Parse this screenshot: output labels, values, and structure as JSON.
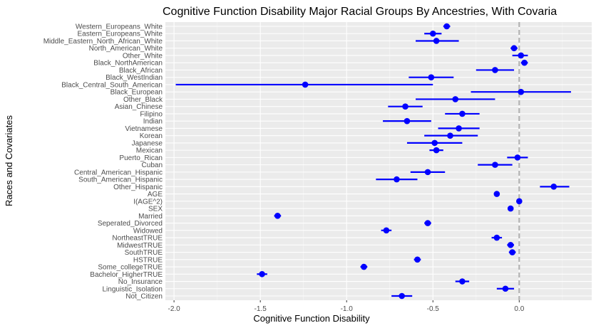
{
  "chart_data": {
    "type": "scatter",
    "title": "Cognitive Function Disability Major Racial Groups By Ancestries, With Covaria",
    "xlabel": "Cognitive Function Disability",
    "ylabel": "Races and Covariates",
    "xlim": [
      -2.05,
      0.42
    ],
    "x_ticks": [
      -2.0,
      -1.5,
      -1.0,
      -0.5,
      0.0
    ],
    "x_tick_labels": [
      "-2.0",
      "-1.5",
      "-1.0",
      "-0.5",
      "0.0"
    ],
    "reference_line_x": 0,
    "grid": true,
    "point_color": "#0000ff",
    "reference_line_color": "#b3b3b3",
    "panel_color": "#ebebeb",
    "points": [
      {
        "label": "Western_Europeans_White",
        "estimate": -0.42,
        "low": -0.44,
        "high": -0.4
      },
      {
        "label": "Eastern_Europeans_White",
        "estimate": -0.5,
        "low": -0.55,
        "high": -0.45
      },
      {
        "label": "Middle_Eastern_North_African_White",
        "estimate": -0.48,
        "low": -0.6,
        "high": -0.35
      },
      {
        "label": "North_American_White",
        "estimate": -0.03,
        "low": -0.05,
        "high": -0.01
      },
      {
        "label": "Other_White",
        "estimate": 0.01,
        "low": -0.04,
        "high": 0.05
      },
      {
        "label": "Black_NorthAmerican",
        "estimate": 0.03,
        "low": 0.01,
        "high": 0.05
      },
      {
        "label": "Black_African",
        "estimate": -0.14,
        "low": -0.25,
        "high": -0.03
      },
      {
        "label": "Black_WestIndian",
        "estimate": -0.51,
        "low": -0.64,
        "high": -0.38
      },
      {
        "label": "Black_Central_South_American",
        "estimate": -1.24,
        "low": -1.99,
        "high": -0.5
      },
      {
        "label": "Black_European",
        "estimate": 0.01,
        "low": -0.28,
        "high": 0.3
      },
      {
        "label": "Other_Black",
        "estimate": -0.37,
        "low": -0.6,
        "high": -0.14
      },
      {
        "label": "Asian_Chinese",
        "estimate": -0.66,
        "low": -0.76,
        "high": -0.56
      },
      {
        "label": "Filipino",
        "estimate": -0.33,
        "low": -0.43,
        "high": -0.23
      },
      {
        "label": "Indian",
        "estimate": -0.65,
        "low": -0.79,
        "high": -0.51
      },
      {
        "label": "Vietnamese",
        "estimate": -0.35,
        "low": -0.47,
        "high": -0.23
      },
      {
        "label": "Korean",
        "estimate": -0.4,
        "low": -0.55,
        "high": -0.24
      },
      {
        "label": "Japanese",
        "estimate": -0.49,
        "low": -0.65,
        "high": -0.33
      },
      {
        "label": "Mexican",
        "estimate": -0.48,
        "low": -0.52,
        "high": -0.44
      },
      {
        "label": "Puerto_Rican",
        "estimate": -0.01,
        "low": -0.07,
        "high": 0.05
      },
      {
        "label": "Cuban",
        "estimate": -0.14,
        "low": -0.24,
        "high": -0.04
      },
      {
        "label": "Central_American_Hispanic",
        "estimate": -0.53,
        "low": -0.63,
        "high": -0.43
      },
      {
        "label": "South_American_Hispanic",
        "estimate": -0.71,
        "low": -0.83,
        "high": -0.59
      },
      {
        "label": "Other_Hispanic",
        "estimate": 0.2,
        "low": 0.12,
        "high": 0.29
      },
      {
        "label": "AGE",
        "estimate": -0.13,
        "low": -0.14,
        "high": -0.12
      },
      {
        "label": "I(AGE^2)",
        "estimate": 0.0,
        "low": 0.0,
        "high": 0.0
      },
      {
        "label": "SEX",
        "estimate": -0.05,
        "low": -0.06,
        "high": -0.04
      },
      {
        "label": "Married",
        "estimate": -1.4,
        "low": -1.42,
        "high": -1.38
      },
      {
        "label": "Seperated_Divorced",
        "estimate": -0.53,
        "low": -0.55,
        "high": -0.51
      },
      {
        "label": "Widowed",
        "estimate": -0.77,
        "low": -0.8,
        "high": -0.74
      },
      {
        "label": "NortheastTRUE",
        "estimate": -0.13,
        "low": -0.16,
        "high": -0.1
      },
      {
        "label": "MidwestTRUE",
        "estimate": -0.05,
        "low": -0.07,
        "high": -0.03
      },
      {
        "label": "SouthTRUE",
        "estimate": -0.04,
        "low": -0.06,
        "high": -0.02
      },
      {
        "label": "HSTRUE",
        "estimate": -0.59,
        "low": -0.61,
        "high": -0.57
      },
      {
        "label": "Some_collegeTRUE",
        "estimate": -0.9,
        "low": -0.92,
        "high": -0.88
      },
      {
        "label": "Bachelor_HigherTRUE",
        "estimate": -1.49,
        "low": -1.52,
        "high": -1.46
      },
      {
        "label": "No_Insurance",
        "estimate": -0.33,
        "low": -0.37,
        "high": -0.29
      },
      {
        "label": "Linguistic_Isolation",
        "estimate": -0.08,
        "low": -0.13,
        "high": -0.03
      },
      {
        "label": "Not_Citizen",
        "estimate": -0.68,
        "low": -0.74,
        "high": -0.62
      }
    ]
  }
}
